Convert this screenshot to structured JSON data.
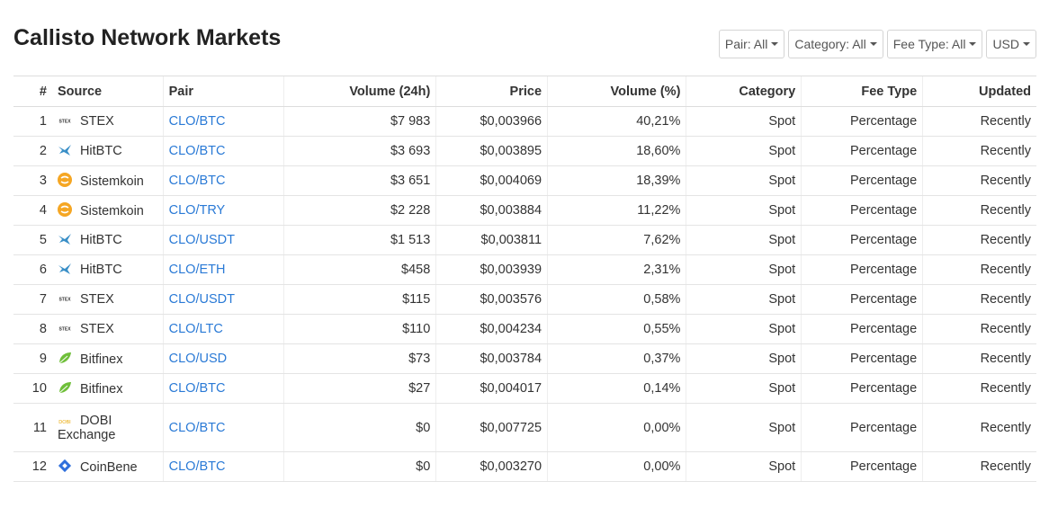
{
  "page": {
    "title": "Callisto Network Markets"
  },
  "filters": [
    {
      "label": "Pair: All"
    },
    {
      "label": "Category: All"
    },
    {
      "label": "Fee Type: All"
    },
    {
      "label": "USD"
    }
  ],
  "table": {
    "headers": {
      "num": "#",
      "source": "Source",
      "pair": "Pair",
      "volume": "Volume (24h)",
      "price": "Price",
      "volume_pct": "Volume (%)",
      "category": "Category",
      "fee_type": "Fee Type",
      "updated": "Updated"
    },
    "rows": [
      {
        "num": "1",
        "source": "STEX",
        "icon": "stex-icon",
        "pair": "CLO/BTC",
        "volume": "$7 983",
        "price": "$0,003966",
        "volume_pct": "40,21%",
        "category": "Spot",
        "fee_type": "Percentage",
        "updated": "Recently"
      },
      {
        "num": "2",
        "source": "HitBTC",
        "icon": "hitbtc-icon",
        "pair": "CLO/BTC",
        "volume": "$3 693",
        "price": "$0,003895",
        "volume_pct": "18,60%",
        "category": "Spot",
        "fee_type": "Percentage",
        "updated": "Recently"
      },
      {
        "num": "3",
        "source": "Sistemkoin",
        "icon": "sistemkoin-icon",
        "pair": "CLO/BTC",
        "volume": "$3 651",
        "price": "$0,004069",
        "volume_pct": "18,39%",
        "category": "Spot",
        "fee_type": "Percentage",
        "updated": "Recently"
      },
      {
        "num": "4",
        "source": "Sistemkoin",
        "icon": "sistemkoin-icon",
        "pair": "CLO/TRY",
        "volume": "$2 228",
        "price": "$0,003884",
        "volume_pct": "11,22%",
        "category": "Spot",
        "fee_type": "Percentage",
        "updated": "Recently"
      },
      {
        "num": "5",
        "source": "HitBTC",
        "icon": "hitbtc-icon",
        "pair": "CLO/USDT",
        "volume": "$1 513",
        "price": "$0,003811",
        "volume_pct": "7,62%",
        "category": "Spot",
        "fee_type": "Percentage",
        "updated": "Recently"
      },
      {
        "num": "6",
        "source": "HitBTC",
        "icon": "hitbtc-icon",
        "pair": "CLO/ETH",
        "volume": "$458",
        "price": "$0,003939",
        "volume_pct": "2,31%",
        "category": "Spot",
        "fee_type": "Percentage",
        "updated": "Recently"
      },
      {
        "num": "7",
        "source": "STEX",
        "icon": "stex-icon",
        "pair": "CLO/USDT",
        "volume": "$115",
        "price": "$0,003576",
        "volume_pct": "0,58%",
        "category": "Spot",
        "fee_type": "Percentage",
        "updated": "Recently"
      },
      {
        "num": "8",
        "source": "STEX",
        "icon": "stex-icon",
        "pair": "CLO/LTC",
        "volume": "$110",
        "price": "$0,004234",
        "volume_pct": "0,55%",
        "category": "Spot",
        "fee_type": "Percentage",
        "updated": "Recently"
      },
      {
        "num": "9",
        "source": "Bitfinex",
        "icon": "bitfinex-icon",
        "pair": "CLO/USD",
        "volume": "$73",
        "price": "$0,003784",
        "volume_pct": "0,37%",
        "category": "Spot",
        "fee_type": "Percentage",
        "updated": "Recently"
      },
      {
        "num": "10",
        "source": "Bitfinex",
        "icon": "bitfinex-icon",
        "pair": "CLO/BTC",
        "volume": "$27",
        "price": "$0,004017",
        "volume_pct": "0,14%",
        "category": "Spot",
        "fee_type": "Percentage",
        "updated": "Recently"
      },
      {
        "num": "11",
        "source": "DOBI Exchange",
        "icon": "dobi-icon",
        "pair": "CLO/BTC",
        "volume": "$0",
        "price": "$0,007725",
        "volume_pct": "0,00%",
        "category": "Spot",
        "fee_type": "Percentage",
        "updated": "Recently"
      },
      {
        "num": "12",
        "source": "CoinBene",
        "icon": "coinbene-icon",
        "pair": "CLO/BTC",
        "volume": "$0",
        "price": "$0,003270",
        "volume_pct": "0,00%",
        "category": "Spot",
        "fee_type": "Percentage",
        "updated": "Recently"
      }
    ]
  },
  "colors": {
    "link": "#2a7ad6",
    "sistemkoin": "#f5a623",
    "bitfinex": "#6fbf3a",
    "hitbtc": "#3a8fc7",
    "coinbene": "#2f6fdc",
    "dobi": "#e8a600"
  }
}
